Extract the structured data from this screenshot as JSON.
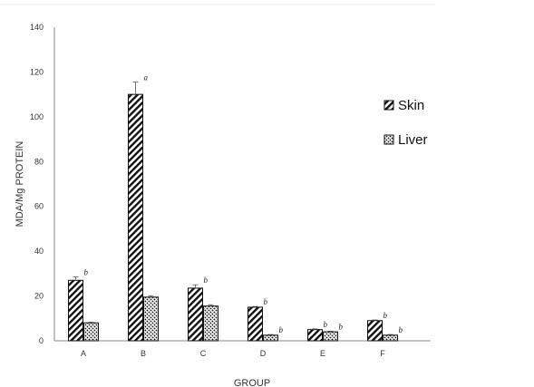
{
  "chart_data": {
    "type": "bar",
    "categories": [
      "A",
      "B",
      "C",
      "D",
      "E",
      "F"
    ],
    "series": [
      {
        "name": "Skin",
        "pattern": "diag",
        "values": [
          27,
          110,
          23.5,
          15,
          5,
          9
        ],
        "errors": [
          1.5,
          5.5,
          1.5,
          0.3,
          0.3,
          0.3
        ]
      },
      {
        "name": "Liver",
        "pattern": "check",
        "values": [
          8,
          19.5,
          15.5,
          2.5,
          4,
          2.5
        ],
        "errors": [
          0.3,
          0.6,
          0.6,
          0.3,
          0.3,
          0.3
        ]
      }
    ],
    "significance": {
      "Skin": [
        "b",
        "a",
        "b",
        "b",
        "b",
        "b"
      ],
      "Liver": [
        "",
        "",
        "",
        "b",
        "b",
        "b"
      ]
    },
    "xlabel": "GROUP",
    "ylabel": "MDA/Mg PROTEIN",
    "ylim": [
      0,
      140
    ],
    "yticks": [
      0,
      20,
      40,
      60,
      80,
      100,
      120,
      140
    ],
    "legend_position": "right",
    "grid": false,
    "colors": {
      "ink": "#111111",
      "axis": "#777777",
      "bar_fill": "#ffffff"
    }
  }
}
